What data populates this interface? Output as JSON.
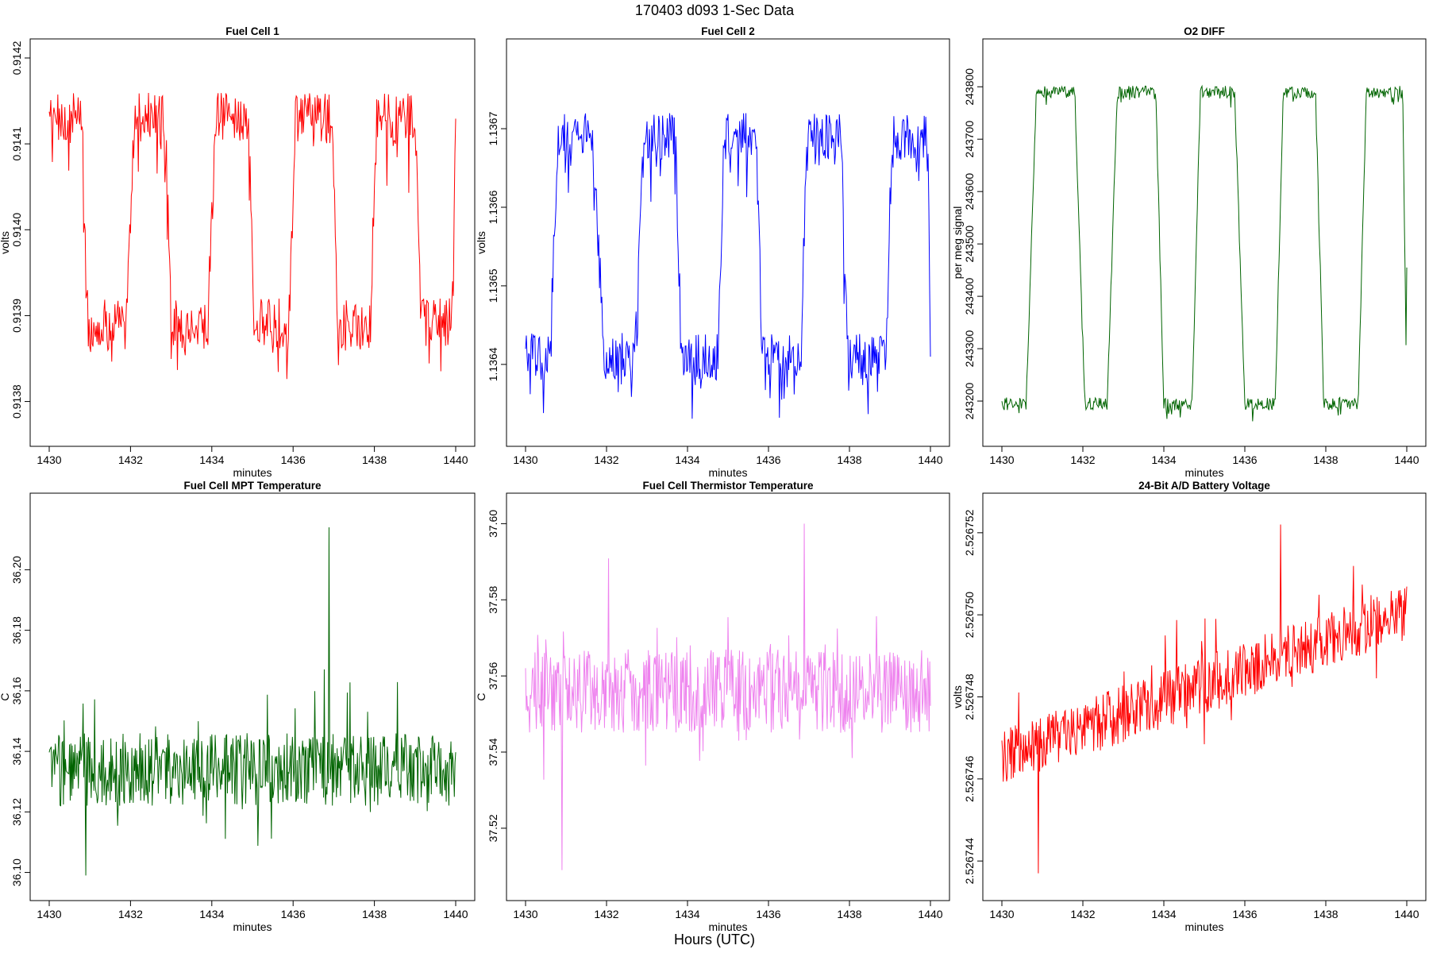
{
  "figure": {
    "title": "170403   d093   1-Sec Data",
    "bottom_label": "Hours (UTC)"
  },
  "chart_data": [
    {
      "type": "line",
      "title": "Fuel Cell 1",
      "xlabel": "minutes",
      "ylabel": "volts",
      "color": "#ff0000",
      "xlim": [
        1430,
        1440
      ],
      "ylim": [
        0.91377,
        0.9142
      ],
      "xticks": [
        1430,
        1432,
        1434,
        1436,
        1438,
        1440
      ],
      "xtick_labels": [
        "1430",
        "1432",
        "1434",
        "1436",
        "1438",
        "1440"
      ],
      "yticks": [
        0.9138,
        0.9139,
        0.914,
        0.9141,
        0.9142
      ],
      "ytick_labels": [
        "0.9138",
        "0.9139",
        "0.9140",
        "0.9141",
        "0.9142"
      ],
      "series": [
        {
          "waveform": "square",
          "start": 1430.0,
          "end": 1440.0,
          "high": 0.91413,
          "low": 0.91389,
          "noise": 3e-05,
          "transitions": [
            [
              1430.8,
              1430.95
            ],
            [
              1431.9,
              1432.1
            ],
            [
              1432.85,
              1433.0
            ],
            [
              1433.9,
              1434.1
            ],
            [
              1434.9,
              1435.05
            ],
            [
              1435.9,
              1436.05
            ],
            [
              1436.95,
              1437.1
            ],
            [
              1437.9,
              1438.05
            ],
            [
              1439.0,
              1439.15
            ],
            [
              1439.9,
              1440.0
            ]
          ],
          "first_level": "high"
        }
      ]
    },
    {
      "type": "line",
      "title": "Fuel Cell 2",
      "xlabel": "minutes",
      "ylabel": "volts",
      "color": "#0000ff",
      "xlim": [
        1430,
        1440
      ],
      "ylim": [
        1.13632,
        1.13679
      ],
      "xticks": [
        1430,
        1432,
        1434,
        1436,
        1438,
        1440
      ],
      "xtick_labels": [
        "1430",
        "1432",
        "1434",
        "1436",
        "1438",
        "1440"
      ],
      "yticks": [
        1.1364,
        1.1365,
        1.1366,
        1.1367
      ],
      "ytick_labels": [
        "1.1364",
        "1.1365",
        "1.1366",
        "1.1367"
      ],
      "series": [
        {
          "waveform": "square",
          "start": 1430.0,
          "end": 1440.0,
          "high": 1.13669,
          "low": 1.13641,
          "noise": 3e-05,
          "transitions": [
            [
              1430.6,
              1430.8
            ],
            [
              1431.65,
              1431.95
            ],
            [
              1432.7,
              1432.9
            ],
            [
              1433.7,
              1433.85
            ],
            [
              1434.75,
              1434.9
            ],
            [
              1435.7,
              1435.85
            ],
            [
              1436.8,
              1436.95
            ],
            [
              1437.8,
              1437.95
            ],
            [
              1438.9,
              1439.05
            ],
            [
              1439.95,
              1440.0
            ]
          ],
          "first_level": "low"
        }
      ]
    },
    {
      "type": "line",
      "title": "O2 DIFF",
      "xlabel": "minutes",
      "ylabel": "per meg signal",
      "color": "#006400",
      "xlim": [
        1430,
        1440
      ],
      "ylim": [
        243150,
        243855
      ],
      "xticks": [
        1430,
        1432,
        1434,
        1436,
        1438,
        1440
      ],
      "xtick_labels": [
        "1430",
        "1432",
        "1434",
        "1436",
        "1438",
        "1440"
      ],
      "yticks": [
        243200,
        243300,
        243400,
        243500,
        243600,
        243700,
        243800
      ],
      "ytick_labels": [
        "243200",
        "243300",
        "243400",
        "243500",
        "243600",
        "243700",
        "243800"
      ],
      "series": [
        {
          "waveform": "square",
          "start": 1430.0,
          "end": 1440.0,
          "high": 243790,
          "low": 243195,
          "noise": 12,
          "transitions": [
            [
              1430.6,
              1430.85
            ],
            [
              1431.8,
              1432.05
            ],
            [
              1432.6,
              1432.85
            ],
            [
              1433.8,
              1434.0
            ],
            [
              1434.7,
              1434.9
            ],
            [
              1435.75,
              1436.0
            ],
            [
              1436.75,
              1436.95
            ],
            [
              1437.75,
              1437.95
            ],
            [
              1438.8,
              1439.0
            ],
            [
              1439.9,
              1440.0
            ]
          ],
          "first_level": "low",
          "end_value": 243455
        }
      ]
    },
    {
      "type": "line",
      "title": "Fuel Cell MPT Temperature",
      "xlabel": "minutes",
      "ylabel": "C",
      "color": "#006400",
      "xlim": [
        1430,
        1440
      ],
      "ylim": [
        36.097,
        36.219
      ],
      "xticks": [
        1430,
        1432,
        1434,
        1436,
        1438,
        1440
      ],
      "xtick_labels": [
        "1430",
        "1432",
        "1434",
        "1436",
        "1438",
        "1440"
      ],
      "yticks": [
        36.1,
        36.12,
        36.14,
        36.16,
        36.18,
        36.2
      ],
      "ytick_labels": [
        "36.10",
        "36.12",
        "36.14",
        "36.16",
        "36.18",
        "36.20"
      ],
      "series": [
        {
          "waveform": "noise",
          "start": 1430.0,
          "end": 1440.0,
          "center": 36.134,
          "amplitude": 0.012,
          "trend": 0.0,
          "min": 36.099,
          "max": 36.214,
          "points": 600
        }
      ]
    },
    {
      "type": "line",
      "title": "Fuel Cell Thermistor Temperature",
      "xlabel": "minutes",
      "ylabel": "C",
      "color": "#ee82ee",
      "xlim": [
        1430,
        1440
      ],
      "ylim": [
        37.506,
        37.603
      ],
      "xticks": [
        1430,
        1432,
        1434,
        1436,
        1438,
        1440
      ],
      "xtick_labels": [
        "1430",
        "1432",
        "1434",
        "1436",
        "1438",
        "1440"
      ],
      "yticks": [
        37.52,
        37.54,
        37.56,
        37.58,
        37.6
      ],
      "ytick_labels": [
        "37.52",
        "37.54",
        "37.56",
        "37.58",
        "37.60"
      ],
      "series": [
        {
          "waveform": "noise",
          "start": 1430.0,
          "end": 1440.0,
          "center": 37.556,
          "amplitude": 0.011,
          "trend": 0.0,
          "min": 37.509,
          "max": 37.6,
          "points": 600
        }
      ]
    },
    {
      "type": "line",
      "title": "24-Bit A/D Battery Voltage",
      "xlabel": "minutes",
      "ylabel": "volts",
      "color": "#ff0000",
      "xlim": [
        1430,
        1440
      ],
      "ylim": [
        2.5267435,
        2.5267525
      ],
      "xticks": [
        1430,
        1432,
        1434,
        1436,
        1438,
        1440
      ],
      "xtick_labels": [
        "1430",
        "1432",
        "1434",
        "1436",
        "1438",
        "1440"
      ],
      "yticks": [
        2.526744,
        2.526746,
        2.526748,
        2.52675,
        2.526752
      ],
      "ytick_labels": [
        "2.526744",
        "2.526746",
        "2.526748",
        "2.526750",
        "2.526752"
      ],
      "series": [
        {
          "waveform": "noise",
          "start": 1430.0,
          "end": 1440.0,
          "center": 2.5267465,
          "amplitude": 7e-07,
          "trend": 3.6e-06,
          "min": 2.5267437,
          "max": 2.5267522,
          "points": 600
        }
      ]
    }
  ]
}
